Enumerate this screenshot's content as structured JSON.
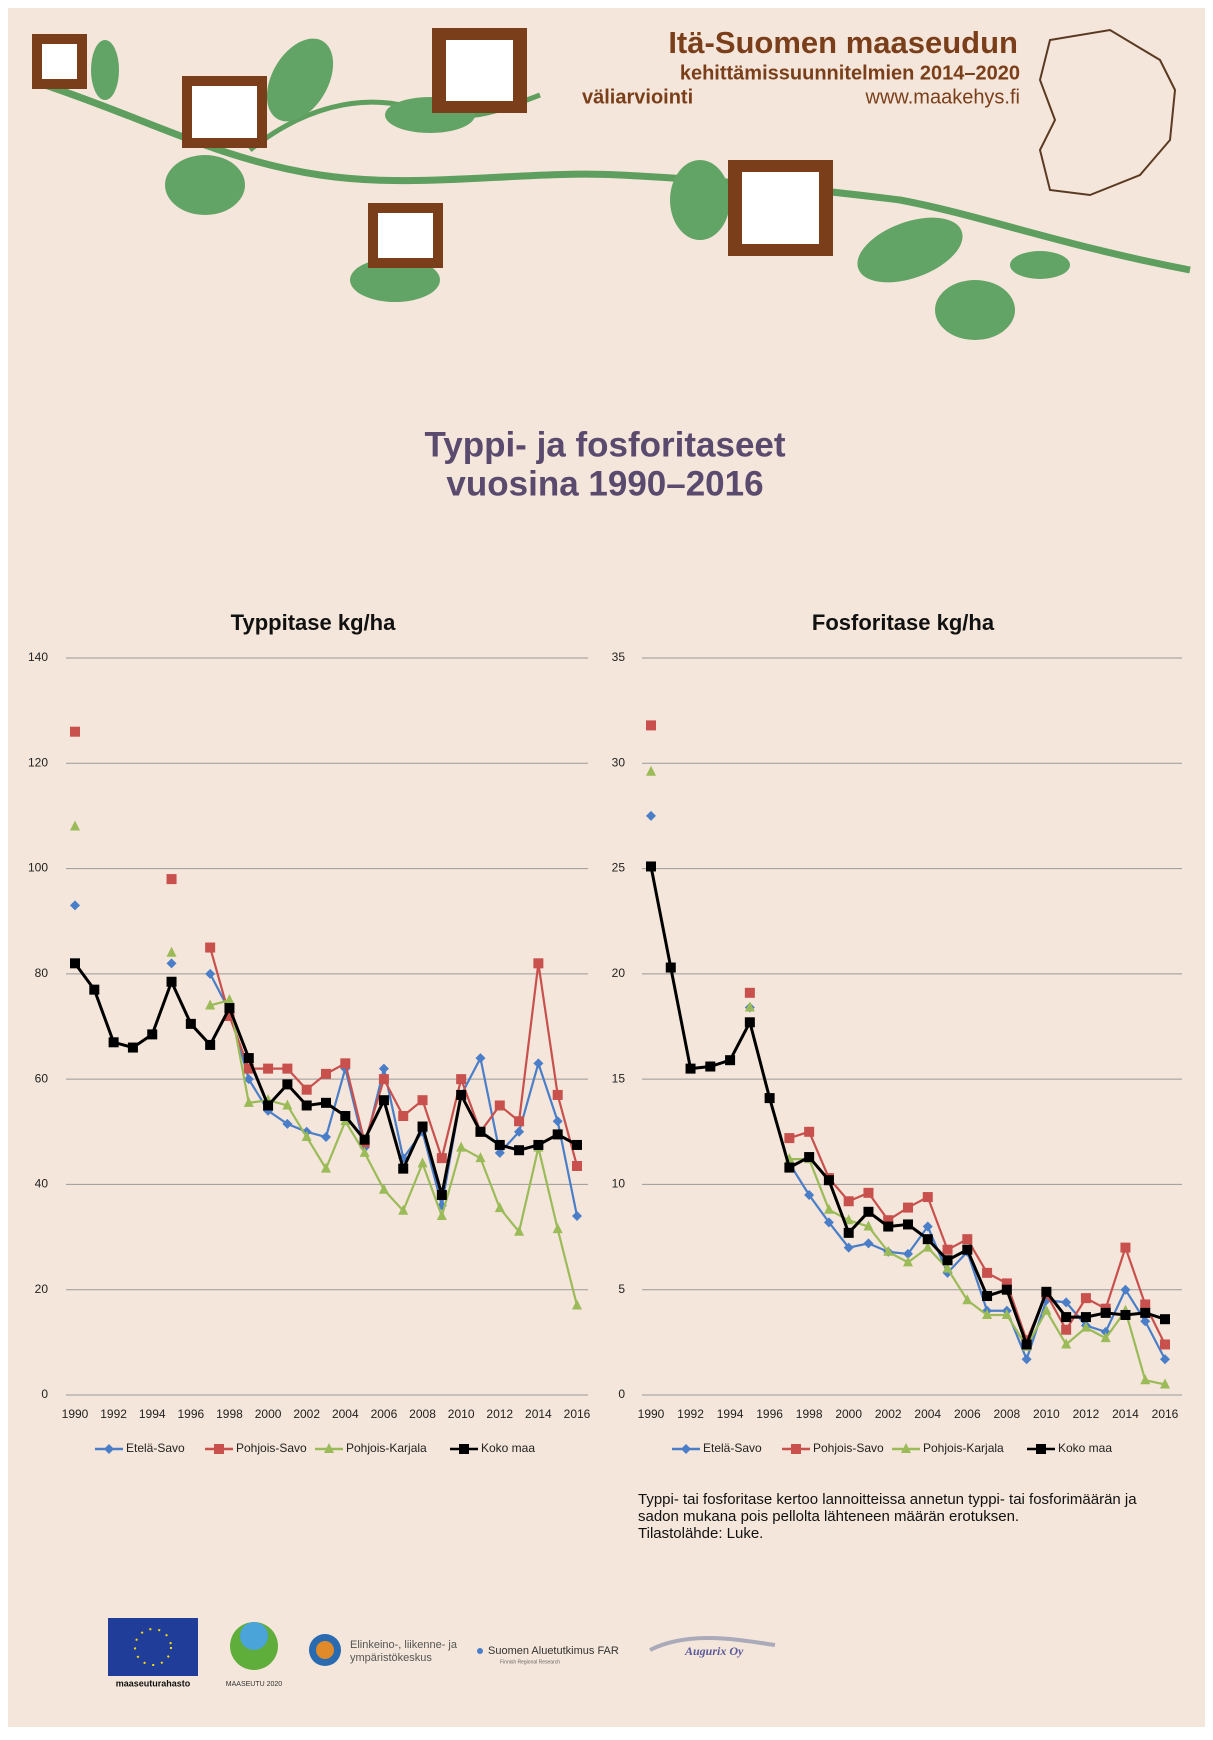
{
  "header": {
    "title": "Itä-Suomen maaseudun",
    "subtitle": "kehittämissuunnitelmien 2014–2020",
    "subtitle2": "väliarviointi",
    "url": "www.maakehys.fi"
  },
  "main_title": [
    "Typpi- ja fosforitaseet",
    "vuosina 1990–2016"
  ],
  "chart_data": [
    {
      "type": "line",
      "title": "Typpitase kg/ha",
      "x": [
        1990,
        1991,
        1992,
        1993,
        1994,
        1995,
        1996,
        1997,
        1998,
        1999,
        2000,
        2001,
        2002,
        2003,
        2004,
        2005,
        2006,
        2007,
        2008,
        2009,
        2010,
        2011,
        2012,
        2013,
        2014,
        2015,
        2016
      ],
      "xlim": [
        1990,
        2016
      ],
      "xticks": [
        1990,
        1992,
        1994,
        1996,
        1998,
        2000,
        2002,
        2004,
        2006,
        2008,
        2010,
        2012,
        2014,
        2016
      ],
      "ylim": [
        0,
        140
      ],
      "yticks": [
        0,
        20,
        40,
        60,
        80,
        100,
        120,
        140
      ],
      "grid": true,
      "legend": "bottom",
      "series": [
        {
          "name": "Etelä-Savo",
          "color": "#4a7ec8",
          "marker": "diamond",
          "values": [
            93,
            null,
            null,
            null,
            null,
            82,
            null,
            80,
            73,
            60,
            54,
            51.5,
            50,
            49,
            62,
            47,
            62,
            45,
            50,
            36,
            57,
            64,
            46,
            50,
            63,
            52,
            34
          ]
        },
        {
          "name": "Pohjois-Savo",
          "color": "#c8504d",
          "marker": "square",
          "values": [
            126,
            null,
            null,
            null,
            null,
            98,
            null,
            85,
            72,
            62,
            62,
            62,
            58,
            61,
            63,
            48,
            60,
            53,
            56,
            45,
            60,
            50,
            55,
            52,
            82,
            57,
            43.5
          ]
        },
        {
          "name": "Pohjois-Karjala",
          "color": "#9bbb59",
          "marker": "triangle",
          "values": [
            108,
            null,
            null,
            null,
            null,
            84,
            null,
            74,
            75,
            55.5,
            56,
            55,
            49,
            43,
            52,
            46,
            39,
            35,
            44,
            34,
            47,
            45,
            35.5,
            31,
            47,
            31.5,
            17
          ]
        },
        {
          "name": "Koko maa",
          "color": "#000000",
          "marker": "square",
          "values": [
            82,
            77,
            67,
            66,
            68.5,
            78.5,
            70.5,
            66.5,
            73.5,
            64,
            55,
            59,
            55,
            55.5,
            53,
            48.5,
            56,
            43,
            51,
            38,
            57,
            50,
            47.5,
            46.5,
            47.5,
            49.5,
            47.5
          ]
        }
      ]
    },
    {
      "type": "line",
      "title": "Fosforitase kg/ha",
      "x": [
        1990,
        1991,
        1992,
        1993,
        1994,
        1995,
        1996,
        1997,
        1998,
        1999,
        2000,
        2001,
        2002,
        2003,
        2004,
        2005,
        2006,
        2007,
        2008,
        2009,
        2010,
        2011,
        2012,
        2013,
        2014,
        2015,
        2016
      ],
      "xlim": [
        1990,
        2016
      ],
      "xticks": [
        1990,
        1992,
        1994,
        1996,
        1998,
        2000,
        2002,
        2004,
        2006,
        2008,
        2010,
        2012,
        2014,
        2016
      ],
      "ylim": [
        0,
        35
      ],
      "yticks": [
        0,
        5,
        10,
        15,
        20,
        25,
        30,
        35
      ],
      "grid": true,
      "legend": "bottom",
      "series": [
        {
          "name": "Etelä-Savo",
          "color": "#4a7ec8",
          "marker": "diamond",
          "values": [
            27.5,
            null,
            null,
            null,
            null,
            18.4,
            null,
            11.0,
            9.5,
            8.2,
            7.0,
            7.2,
            6.8,
            6.7,
            8.0,
            5.8,
            6.8,
            4.0,
            4.0,
            1.7,
            4.5,
            4.4,
            3.3,
            3.0,
            5.0,
            3.5,
            1.7
          ]
        },
        {
          "name": "Pohjois-Savo",
          "color": "#c8504d",
          "marker": "square",
          "values": [
            31.8,
            null,
            null,
            null,
            null,
            19.1,
            null,
            12.2,
            12.5,
            10.3,
            9.2,
            9.6,
            8.3,
            8.9,
            9.4,
            6.9,
            7.4,
            5.8,
            5.3,
            2.6,
            4.8,
            3.1,
            4.6,
            4.1,
            7.0,
            4.3,
            2.4
          ]
        },
        {
          "name": "Pohjois-Karjala",
          "color": "#9bbb59",
          "marker": "triangle",
          "values": [
            29.6,
            null,
            null,
            null,
            null,
            18.4,
            null,
            11.2,
            11.2,
            8.8,
            8.3,
            8.0,
            6.8,
            6.3,
            7.0,
            6.0,
            4.5,
            3.8,
            3.8,
            2.3,
            4.0,
            2.4,
            3.2,
            2.7,
            4.0,
            0.7,
            0.5
          ]
        },
        {
          "name": "Koko maa",
          "color": "#000000",
          "marker": "square",
          "values": [
            25.1,
            20.3,
            15.5,
            15.6,
            15.9,
            17.7,
            14.1,
            10.8,
            11.3,
            10.2,
            7.7,
            8.7,
            8.0,
            8.1,
            7.4,
            6.4,
            6.9,
            4.7,
            5.0,
            2.4,
            4.9,
            3.7,
            3.7,
            3.9,
            3.8,
            3.9,
            3.6
          ]
        }
      ]
    }
  ],
  "footnote": [
    "Typpi- tai fosforitase kertoo lannoitteissa annetun typpi- tai fosforimäärän ja",
    "sadon mukana pois pellolta lähteneen määrän erotuksen.",
    "Tilastolähde: Luke."
  ],
  "logos": {
    "eu": "maaseuturahasto",
    "maaseutu": "MAASEUTU 2020",
    "ely": [
      "Elinkeino-, liikenne- ja",
      "ympäristökeskus"
    ],
    "far": "Suomen Aluetutkimus FAR",
    "far_sub": "Finnish Regional Research",
    "augurix": "Augurix Oy"
  }
}
